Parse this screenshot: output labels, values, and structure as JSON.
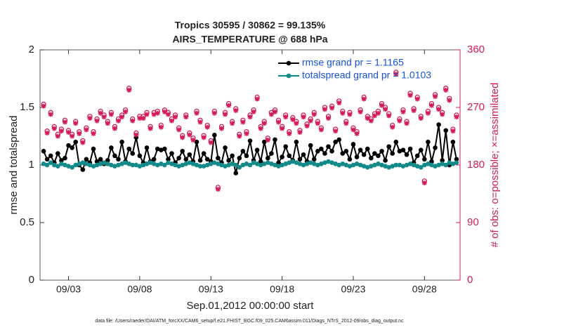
{
  "chart_data": {
    "type": "line",
    "title": "Tropics 30595 / 30862 = 99.135%",
    "subtitle": "AIRS_TEMPERATURE @ 688 hPa",
    "xlabel": "Sep.01,2012 00:00:00 start",
    "ylabel": "rmse and totalspread",
    "y2label": "# of obs: o=possible; ×=assimilated",
    "footnote": "data file: /Users/raeder/DAI/ATM_forcXX/CAM6_setup/f.e21.FHIST_BGC.f09_025.CAM6assim.011/Diags_NTrS_2012-09/obs_diag_output.nc",
    "legend": "upper right",
    "xlim": [
      0,
      29.5
    ],
    "xticks": [
      {
        "value": 2,
        "label": "09/03"
      },
      {
        "value": 7,
        "label": "09/08"
      },
      {
        "value": 12,
        "label": "09/13"
      },
      {
        "value": 17,
        "label": "09/18"
      },
      {
        "value": 22,
        "label": "09/23"
      },
      {
        "value": 27,
        "label": "09/28"
      }
    ],
    "ylim": [
      0,
      2
    ],
    "yticks": [
      0,
      0.5,
      1,
      1.5,
      2
    ],
    "y2lim": [
      0,
      360
    ],
    "y2ticks": [
      0,
      90,
      180,
      270,
      360
    ],
    "x": [
      0.25,
      0.5,
      0.75,
      1,
      1.25,
      1.5,
      1.75,
      2,
      2.25,
      2.5,
      2.75,
      3,
      3.25,
      3.5,
      3.75,
      4,
      4.25,
      4.5,
      4.75,
      5,
      5.25,
      5.5,
      5.75,
      6,
      6.25,
      6.5,
      6.75,
      7,
      7.25,
      7.5,
      7.75,
      8,
      8.25,
      8.5,
      8.75,
      9,
      9.25,
      9.5,
      9.75,
      10,
      10.25,
      10.5,
      10.75,
      11,
      11.25,
      11.5,
      11.75,
      12,
      12.25,
      12.5,
      12.75,
      13,
      13.25,
      13.5,
      13.75,
      14,
      14.25,
      14.5,
      14.75,
      15,
      15.25,
      15.5,
      15.75,
      16,
      16.25,
      16.5,
      16.75,
      17,
      17.25,
      17.5,
      17.75,
      18,
      18.25,
      18.5,
      18.75,
      19,
      19.25,
      19.5,
      19.75,
      20,
      20.25,
      20.5,
      20.75,
      21,
      21.25,
      21.5,
      21.75,
      22,
      22.25,
      22.5,
      22.75,
      23,
      23.25,
      23.5,
      23.75,
      24,
      24.25,
      24.5,
      24.75,
      25,
      25.25,
      25.5,
      25.75,
      26,
      26.25,
      26.5,
      26.75,
      27,
      27.25,
      27.5,
      27.75,
      28,
      28.25,
      28.5,
      28.75,
      29,
      29.25
    ],
    "series": [
      {
        "name": "rmse grand pr = 1.1165",
        "color": "#000000",
        "marker": "dot",
        "line": true,
        "values": [
          1.12,
          1.05,
          1.08,
          1.02,
          1.1,
          1.04,
          1.06,
          1.17,
          1.15,
          1.2,
          1.0,
          0.96,
          1.05,
          1.02,
          1.14,
          1.03,
          1.05,
          1.01,
          1.04,
          1.15,
          1.08,
          1.05,
          1.2,
          1.03,
          1.14,
          1.1,
          1.24,
          1.08,
          1.02,
          1.15,
          1.03,
          1.05,
          1.14,
          1.13,
          1.14,
          1.05,
          1.1,
          1.02,
          1.06,
          1.12,
          1.05,
          1.09,
          1.03,
          1.2,
          1.04,
          1.1,
          1.05,
          1.03,
          1.26,
          1.06,
          1.02,
          1.15,
          1.04,
          1.08,
          0.93,
          1.06,
          1.12,
          1.08,
          1.21,
          1.04,
          1.13,
          1.03,
          1.2,
          1.06,
          1.1,
          1.22,
          1.02,
          1.07,
          1.16,
          1.08,
          1.04,
          1.2,
          1.05,
          1.09,
          1.03,
          1.17,
          1.05,
          1.12,
          1.14,
          1.1,
          1.16,
          1.12,
          1.2,
          1.22,
          1.1,
          1.12,
          1.05,
          1.18,
          1.07,
          1.13,
          1.09,
          1.14,
          1.06,
          1.1,
          1.08,
          1.12,
          1.04,
          1.16,
          1.1,
          1.2,
          1.12,
          1.13,
          1.09,
          1.14,
          1.02,
          1.08,
          1.13,
          1.05,
          1.2,
          1.03,
          1.15,
          1.35,
          1.04,
          1.3,
          1.0,
          1.2,
          1.05
        ]
      },
      {
        "name": "totalspread grand pr = 1.0103",
        "color": "#138a8a",
        "marker": "dot",
        "line": true,
        "values": [
          1.01,
          1.0,
          1.02,
          1.0,
          0.99,
          1.01,
          1.0,
          0.99,
          0.98,
          1.0,
          1.01,
          1.02,
          1.01,
          1.0,
          0.99,
          1.0,
          1.01,
          1.02,
          1.01,
          1.0,
          0.99,
          1.0,
          1.01,
          1.02,
          1.01,
          1.0,
          1.0,
          0.99,
          1.0,
          1.01,
          1.02,
          1.01,
          1.0,
          1.01,
          1.0,
          1.02,
          1.01,
          1.0,
          0.99,
          1.0,
          1.01,
          1.02,
          1.01,
          1.0,
          0.99,
          0.99,
          1.0,
          1.01,
          1.02,
          1.01,
          1.0,
          0.99,
          1.0,
          1.01,
          1.0,
          0.98,
          1.0,
          1.01,
          1.0,
          1.02,
          1.01,
          1.0,
          1.01,
          1.02,
          1.01,
          1.0,
          0.99,
          1.0,
          1.01,
          1.02,
          1.03,
          1.02,
          1.01,
          1.0,
          1.01,
          1.02,
          1.01,
          1.0,
          1.01,
          1.02,
          1.03,
          1.02,
          1.01,
          1.0,
          1.01,
          1.0,
          0.99,
          1.0,
          1.01,
          1.0,
          0.99,
          0.98,
          0.99,
          1.0,
          1.01,
          1.0,
          0.99,
          0.98,
          0.99,
          1.0,
          1.0,
          0.99,
          1.0,
          1.01,
          1.0,
          0.99,
          0.98,
          1.0,
          1.01,
          1.0,
          0.99,
          1.0,
          1.01,
          1.0,
          1.02,
          1.01,
          1.02
        ]
      },
      {
        "color": "#d41a5c",
        "marker": "circle",
        "line": false,
        "axis": "y2",
        "values": [
          275,
          233,
          262,
          240,
          228,
          236,
          250,
          234,
          228,
          248,
          232,
          218,
          238,
          256,
          232,
          252,
          264,
          258,
          248,
          262,
          240,
          252,
          258,
          266,
          300,
          252,
          230,
          256,
          256,
          262,
          240,
          262,
          264,
          242,
          266,
          262,
          252,
          258,
          238,
          226,
          258,
          230,
          222,
          264,
          250,
          226,
          242,
          218,
          264,
          145,
          240,
          262,
          276,
          248,
          268,
          228,
          250,
          232,
          258,
          266,
          286,
          240,
          248,
          222,
          262,
          266,
          250,
          240,
          258,
          232,
          254,
          248,
          234,
          258,
          244,
          252,
          262,
          248,
          238,
          270,
          256,
          272,
          236,
          280,
          264,
          248,
          262,
          238,
          232,
          266,
          286,
          256,
          252,
          260,
          264,
          276,
          270,
          260,
          242,
          325,
          252,
          266,
          248,
          292,
          268,
          286,
          256,
          155,
          264,
          276,
          290,
          270,
          262,
          300,
          284,
          236,
          258
        ]
      },
      {
        "color": "#d41a5c",
        "marker": "asterisk",
        "line": false,
        "axis": "y2",
        "values": [
          272,
          230,
          259,
          237,
          225,
          233,
          247,
          231,
          225,
          245,
          229,
          215,
          235,
          253,
          229,
          249,
          261,
          255,
          245,
          259,
          237,
          249,
          255,
          263,
          297,
          249,
          227,
          253,
          253,
          259,
          237,
          259,
          261,
          239,
          263,
          259,
          249,
          255,
          235,
          223,
          255,
          227,
          219,
          261,
          247,
          223,
          239,
          215,
          261,
          142,
          237,
          259,
          273,
          245,
          265,
          225,
          247,
          229,
          255,
          263,
          283,
          237,
          245,
          219,
          259,
          263,
          247,
          237,
          255,
          229,
          251,
          245,
          231,
          255,
          241,
          249,
          259,
          245,
          235,
          267,
          253,
          269,
          233,
          277,
          261,
          245,
          259,
          235,
          229,
          263,
          283,
          253,
          249,
          257,
          261,
          273,
          267,
          257,
          239,
          322,
          249,
          263,
          245,
          289,
          265,
          283,
          253,
          152,
          261,
          273,
          287,
          267,
          259,
          297,
          281,
          233,
          255
        ]
      }
    ]
  }
}
